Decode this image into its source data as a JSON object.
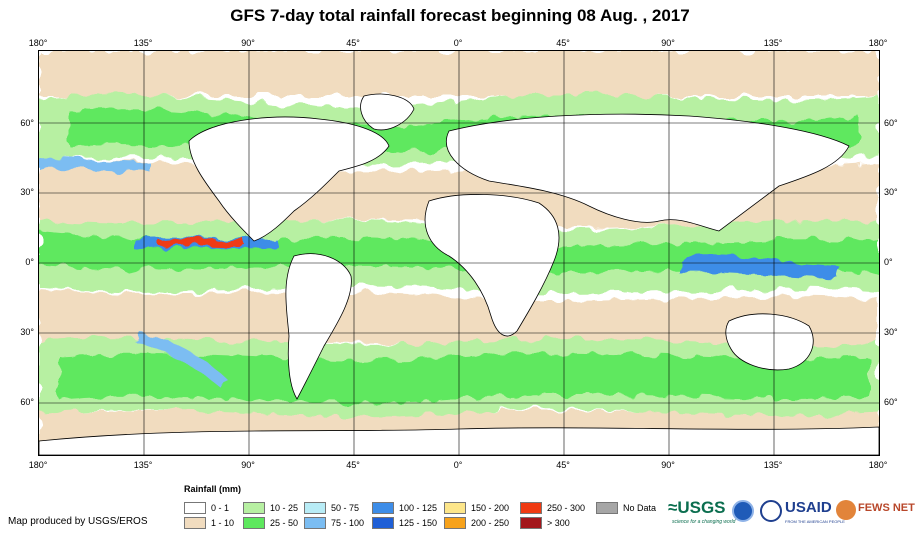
{
  "title": "GFS 7-day total rainfall forecast beginning 08 Aug. , 2017",
  "map": {
    "lon_labels": [
      "180°",
      "135°",
      "90°",
      "45°",
      "0°",
      "45°",
      "90°",
      "135°",
      "180°"
    ],
    "lat_labels": [
      "60°",
      "30°",
      "0°",
      "30°",
      "60°"
    ]
  },
  "legend": {
    "title": "Rainfall (mm)",
    "items": [
      {
        "label": "0 - 1",
        "color": "#ffffff"
      },
      {
        "label": "1 - 10",
        "color": "#f1dcbf"
      },
      {
        "label": "10 - 25",
        "color": "#b7f0a2"
      },
      {
        "label": "25 - 50",
        "color": "#5ee85e"
      },
      {
        "label": "50 - 75",
        "color": "#b8ecf6"
      },
      {
        "label": "75 - 100",
        "color": "#7bbdf2"
      },
      {
        "label": "100 - 125",
        "color": "#3d8de8"
      },
      {
        "label": "125 - 150",
        "color": "#1f5fd6"
      },
      {
        "label": "150 - 200",
        "color": "#fde68a"
      },
      {
        "label": "200 - 250",
        "color": "#f7a21b"
      },
      {
        "label": "250 - 300",
        "color": "#ef3a12"
      },
      {
        "label": "> 300",
        "color": "#a3161b"
      },
      {
        "label": "No Data",
        "color": "#a6a6a6"
      }
    ]
  },
  "credit": "Map produced by USGS/EROS",
  "logos": {
    "usgs": "≈USGS",
    "usgs_tagline": "science for a changing world",
    "usaid": "USAID",
    "usaid_tagline": "FROM THE AMERICAN PEOPLE",
    "fews": "FEWS NET"
  }
}
